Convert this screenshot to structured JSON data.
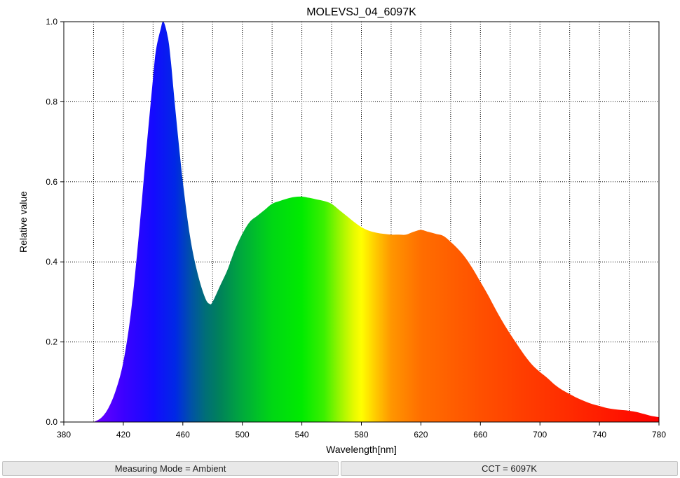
{
  "chart_data": {
    "type": "area",
    "title": "MOLEVSJ_04_6097K",
    "xlabel": "Wavelength[nm]",
    "ylabel": "Relative value",
    "xlim": [
      380,
      780
    ],
    "ylim": [
      0,
      1.0
    ],
    "x_ticks": [
      380,
      420,
      460,
      500,
      540,
      580,
      620,
      660,
      700,
      740,
      780
    ],
    "y_ticks": [
      "0.0",
      "0.2",
      "0.4",
      "0.6",
      "0.8",
      "1.0"
    ],
    "grid": true,
    "series": [
      {
        "x": [
          400,
          405,
          410,
          415,
          420,
          425,
          430,
          435,
          440,
          442,
          445,
          447,
          450,
          452,
          455,
          460,
          465,
          470,
          475,
          478,
          480,
          485,
          490,
          495,
          500,
          505,
          510,
          515,
          520,
          525,
          530,
          535,
          540,
          545,
          550,
          555,
          560,
          565,
          570,
          575,
          580,
          585,
          590,
          595,
          600,
          605,
          610,
          615,
          620,
          625,
          630,
          635,
          640,
          645,
          650,
          655,
          660,
          665,
          670,
          675,
          680,
          685,
          690,
          695,
          700,
          705,
          710,
          715,
          720,
          725,
          730,
          735,
          740,
          745,
          750,
          755,
          760,
          765,
          770,
          775,
          780
        ],
        "y": [
          0.0,
          0.01,
          0.035,
          0.08,
          0.15,
          0.27,
          0.45,
          0.66,
          0.86,
          0.93,
          0.98,
          1.0,
          0.96,
          0.9,
          0.78,
          0.6,
          0.46,
          0.37,
          0.31,
          0.295,
          0.3,
          0.34,
          0.38,
          0.43,
          0.47,
          0.5,
          0.515,
          0.53,
          0.545,
          0.552,
          0.558,
          0.562,
          0.563,
          0.56,
          0.556,
          0.552,
          0.545,
          0.53,
          0.515,
          0.5,
          0.487,
          0.478,
          0.473,
          0.47,
          0.468,
          0.468,
          0.468,
          0.475,
          0.48,
          0.475,
          0.47,
          0.465,
          0.45,
          0.432,
          0.41,
          0.382,
          0.35,
          0.318,
          0.283,
          0.25,
          0.22,
          0.192,
          0.165,
          0.142,
          0.125,
          0.11,
          0.093,
          0.08,
          0.07,
          0.06,
          0.052,
          0.045,
          0.04,
          0.035,
          0.032,
          0.03,
          0.028,
          0.025,
          0.02,
          0.015,
          0.012
        ]
      }
    ]
  },
  "status": {
    "measuring_mode": "Measuring Mode = Ambient",
    "cct": "CCT = 6097K"
  }
}
